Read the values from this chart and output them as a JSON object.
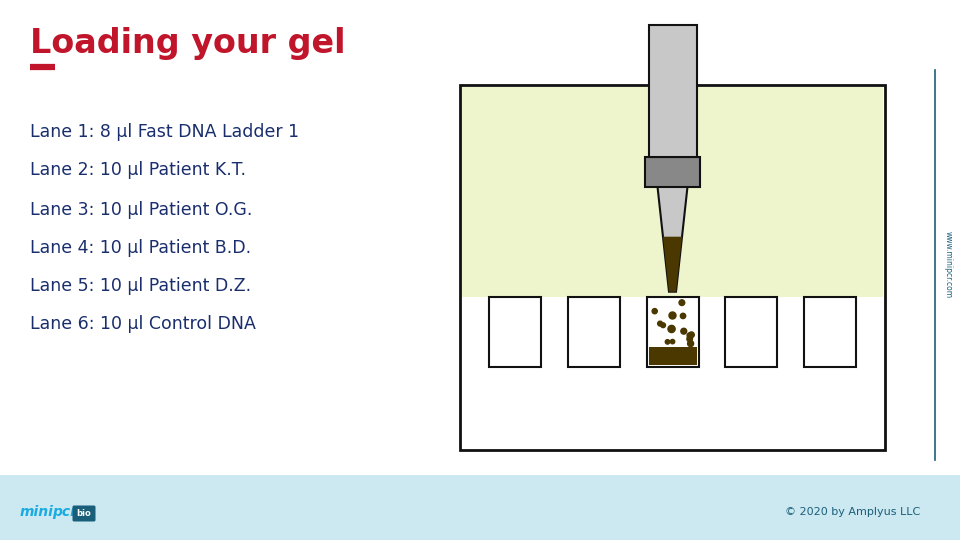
{
  "title": "Loading your gel",
  "title_color": "#c0152a",
  "underline_color": "#c0152a",
  "lanes": [
    "Lane 1: 8 μl Fast DNA Ladder 1",
    "Lane 2: 10 μl Patient K.T.",
    "Lane 3: 10 μl Patient O.G.",
    "Lane 4: 10 μl Patient B.D.",
    "Lane 5: 10 μl Patient D.Z.",
    "Lane 6: 10 μl Control DNA"
  ],
  "lane_text_color": "#1a2e6e",
  "bg_color": "#ffffff",
  "footer_bg": "#cce8f0",
  "footer_text": "© 2020 by Amplyus LLC",
  "footer_text_color": "#1a5f7a",
  "gel_bg": "#eef5cc",
  "gel_border": "#111111",
  "pipette_body_color": "#c8c8c8",
  "pipette_collar_color": "#888888",
  "pipette_sample_color": "#4a3800",
  "side_line_color": "#1a5f7a",
  "watermark_color": "#1a5f7a",
  "minipcr_color": "#1aace0",
  "bio_bg": "#1a5f7a"
}
